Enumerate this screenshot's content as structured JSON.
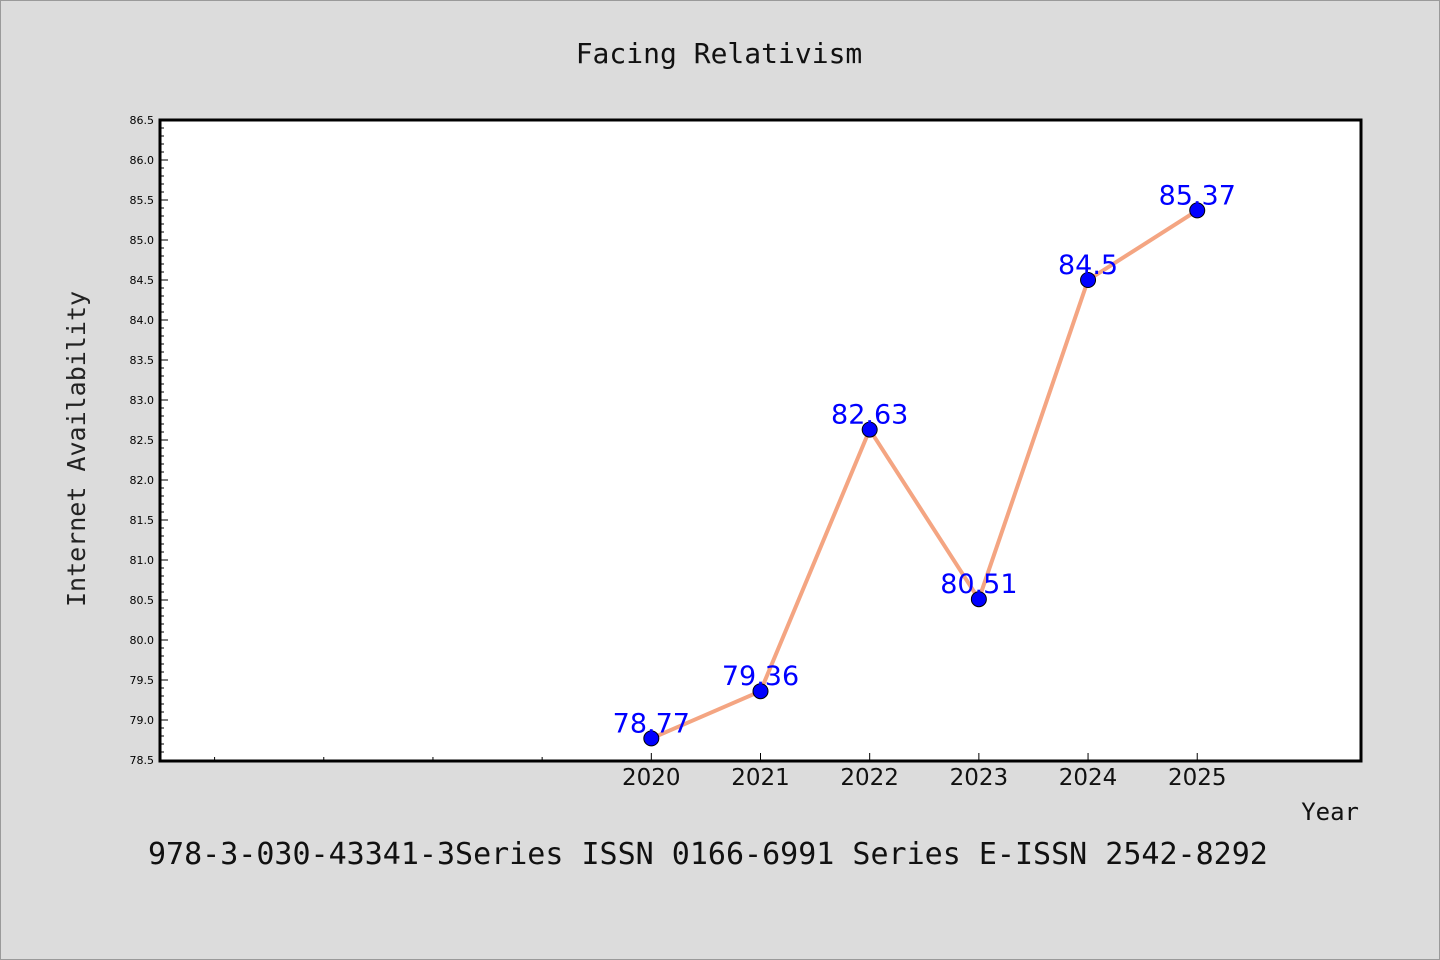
{
  "chart_data": {
    "type": "line",
    "title": "Facing Relativism",
    "xlabel": "Year",
    "ylabel": "Internet Availability",
    "x_categories": [
      "2020",
      "2021",
      "2022",
      "2023",
      "2024",
      "2025"
    ],
    "series": [
      {
        "x": [
          2020,
          2021,
          2022,
          2023,
          2024,
          2025
        ],
        "values": [
          78.77,
          79.36,
          82.63,
          80.51,
          84.5,
          85.37
        ],
        "data_labels": [
          "78.77",
          "79.36",
          "82.63",
          "80.51",
          "84.5",
          "85.37"
        ]
      }
    ],
    "xlim": [
      2015.5,
      2026.5
    ],
    "ylim": [
      78.5,
      86.5
    ],
    "y_ticks": [
      "78.5",
      "79.0",
      "79.5",
      "80.0",
      "80.5",
      "81.0",
      "81.5",
      "82.0",
      "82.5",
      "83.0",
      "83.5",
      "84.0",
      "84.5",
      "85.0",
      "85.5",
      "86.0",
      "86.5"
    ],
    "extra_x_ticks": [
      2016,
      2017,
      2018,
      2019
    ],
    "grid": false,
    "legend": "none",
    "colors": {
      "line": "#f4a582",
      "marker": "#0000ff",
      "label": "#0000ff",
      "background": "#dcdcdc",
      "plot_background": "#ffffff"
    }
  },
  "footer_text": "978-3-030-43341-3Series ISSN 0166-6991 Series E-ISSN 2542-8292"
}
